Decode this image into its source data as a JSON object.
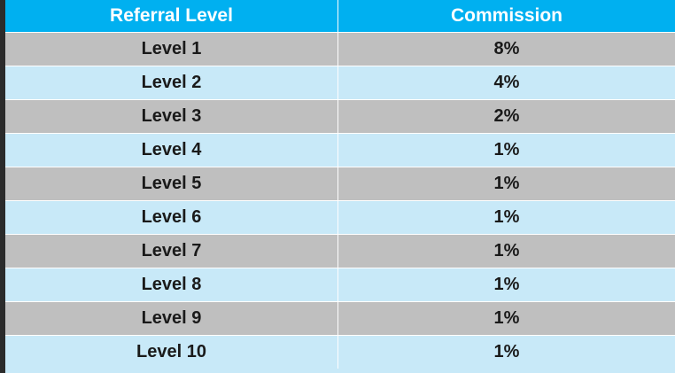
{
  "table": {
    "headers": [
      "Referral Level",
      "Commission"
    ],
    "rows": [
      [
        "Level 1",
        "8%"
      ],
      [
        "Level 2",
        "4%"
      ],
      [
        "Level 3",
        "2%"
      ],
      [
        "Level 4",
        "1%"
      ],
      [
        "Level 5",
        "1%"
      ],
      [
        "Level 6",
        "1%"
      ],
      [
        "Level 7",
        "1%"
      ],
      [
        "Level 8",
        "1%"
      ],
      [
        "Level 9",
        "1%"
      ],
      [
        "Level 10",
        "1%"
      ]
    ]
  },
  "colors": {
    "header_bg": "#00b0f0",
    "header_text": "#ffffff",
    "row_gray": "#bfbfbf",
    "row_light_blue": "#c8e9f8",
    "cell_text": "#1a1a1a",
    "border": "#ffffff"
  }
}
